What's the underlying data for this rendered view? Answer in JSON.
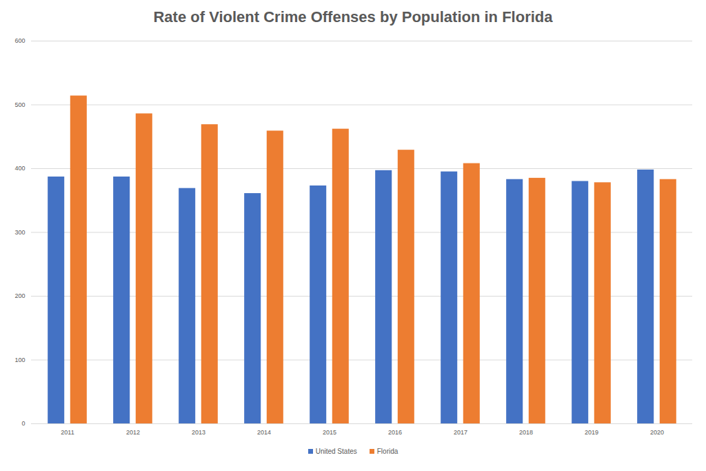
{
  "chart_data": {
    "type": "bar",
    "title": "Rate of Violent Crime Offenses by Population in Florida",
    "categories": [
      "2011",
      "2012",
      "2013",
      "2014",
      "2015",
      "2016",
      "2017",
      "2018",
      "2019",
      "2020"
    ],
    "series": [
      {
        "name": "United States",
        "color": "#4472c4",
        "values": [
          387,
          387,
          369,
          361,
          373,
          397,
          395,
          383,
          380,
          398
        ]
      },
      {
        "name": "Florida",
        "color": "#ed7d31",
        "values": [
          514,
          486,
          469,
          459,
          462,
          429,
          408,
          385,
          378,
          383
        ]
      }
    ],
    "ylim": [
      0,
      600
    ],
    "yticks": [
      0,
      100,
      200,
      300,
      400,
      500,
      600
    ],
    "grid": true,
    "legend": "bottom"
  }
}
